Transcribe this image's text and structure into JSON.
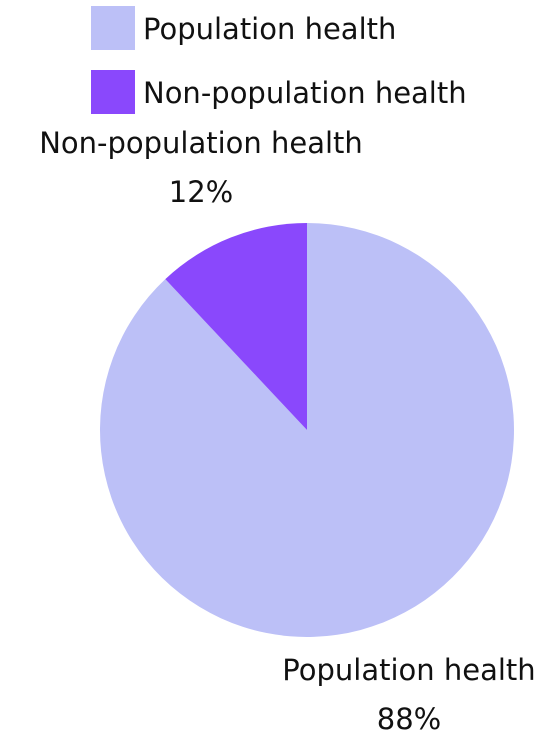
{
  "chart_data": {
    "type": "pie",
    "slices": [
      {
        "label": "Population health",
        "value": 88,
        "display": "88%",
        "color": "#BCC0F7"
      },
      {
        "label": "Non-population health",
        "value": 12,
        "display": "12%",
        "color": "#8A48FC"
      }
    ],
    "legend": {
      "placement": "top-right",
      "items": [
        {
          "label": "Population health",
          "color": "#BCC0F7"
        },
        {
          "label": "Non-population health",
          "color": "#8A48FC"
        }
      ]
    }
  }
}
